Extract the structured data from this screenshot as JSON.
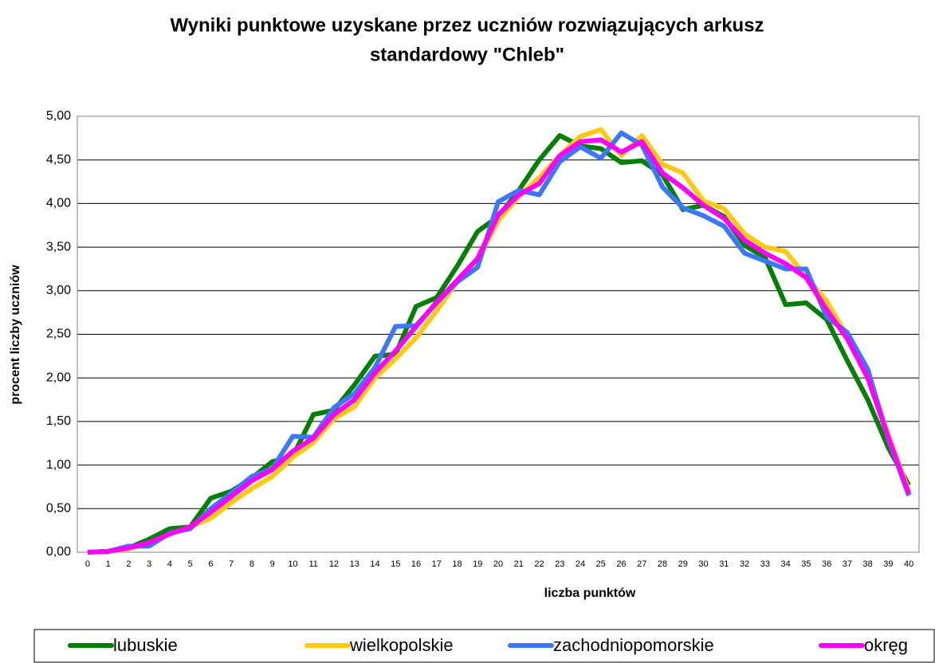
{
  "chart_data": {
    "type": "line",
    "title": [
      "Wyniki punktowe uzyskane przez uczniów rozwiązujących arkusz",
      "standardowy \"Chleb\""
    ],
    "x_label": "liczba punktów",
    "y_label": "procent liczby uczniów",
    "categories": [
      "0",
      "1",
      "2",
      "3",
      "4",
      "5",
      "6",
      "7",
      "8",
      "9",
      "10",
      "11",
      "12",
      "13",
      "14",
      "15",
      "16",
      "17",
      "18",
      "19",
      "20",
      "21",
      "22",
      "23",
      "24",
      "25",
      "26",
      "27",
      "28",
      "29",
      "30",
      "31",
      "32",
      "33",
      "34",
      "35",
      "36",
      "37",
      "38",
      "39",
      "40"
    ],
    "series": [
      {
        "name": "lubuskie",
        "color": "#008000",
        "values": [
          0,
          0.01,
          0.05,
          0.15,
          0.27,
          0.29,
          0.62,
          0.7,
          0.85,
          1.04,
          1.1,
          1.58,
          1.63,
          1.92,
          2.25,
          2.27,
          2.82,
          2.92,
          3.28,
          3.68,
          3.85,
          4.15,
          4.5,
          4.78,
          4.66,
          4.63,
          4.47,
          4.49,
          4.33,
          3.93,
          3.98,
          3.85,
          3.52,
          3.38,
          2.84,
          2.86,
          2.67,
          2.2,
          1.75,
          1.2,
          0.77
        ]
      },
      {
        "name": "wielkopolskie",
        "color": "#ffc90e",
        "values": [
          0,
          0.01,
          0.04,
          0.1,
          0.21,
          0.29,
          0.39,
          0.57,
          0.73,
          0.87,
          1.09,
          1.26,
          1.53,
          1.67,
          2.0,
          2.22,
          2.46,
          2.77,
          3.1,
          3.36,
          3.8,
          4.08,
          4.3,
          4.55,
          4.77,
          4.85,
          4.55,
          4.78,
          4.45,
          4.35,
          4.03,
          3.94,
          3.65,
          3.5,
          3.45,
          3.16,
          2.88,
          2.48,
          2.05,
          1.35,
          0.7
        ]
      },
      {
        "name": "zachodniopomorskie",
        "color": "#3c78ff",
        "values": [
          0,
          0.01,
          0.07,
          0.07,
          0.22,
          0.27,
          0.5,
          0.68,
          0.87,
          0.96,
          1.33,
          1.32,
          1.66,
          1.82,
          2.12,
          2.59,
          2.6,
          2.86,
          3.1,
          3.27,
          4.02,
          4.15,
          4.1,
          4.48,
          4.65,
          4.52,
          4.81,
          4.67,
          4.19,
          3.95,
          3.86,
          3.74,
          3.43,
          3.34,
          3.25,
          3.25,
          2.7,
          2.52,
          2.1,
          1.3,
          0.65
        ]
      },
      {
        "name": "okręg",
        "color": "#ff00ff",
        "values": [
          0,
          0.01,
          0.05,
          0.11,
          0.21,
          0.29,
          0.46,
          0.64,
          0.82,
          0.95,
          1.16,
          1.31,
          1.58,
          1.75,
          2.06,
          2.31,
          2.59,
          2.87,
          3.12,
          3.37,
          3.87,
          4.1,
          4.23,
          4.55,
          4.71,
          4.73,
          4.59,
          4.71,
          4.35,
          4.18,
          3.98,
          3.83,
          3.58,
          3.43,
          3.31,
          3.15,
          2.78,
          2.45,
          2.0,
          1.32,
          0.67
        ]
      }
    ],
    "ylim": [
      0,
      5
    ],
    "yticks": [
      {
        "value": 0,
        "label": "0,00"
      },
      {
        "value": 0.5,
        "label": "0,50"
      },
      {
        "value": 1,
        "label": "1,00"
      },
      {
        "value": 1.5,
        "label": "1,50"
      },
      {
        "value": 2,
        "label": "2,00"
      },
      {
        "value": 2.5,
        "label": "2,50"
      },
      {
        "value": 3,
        "label": "3,00"
      },
      {
        "value": 3.5,
        "label": "3,50"
      },
      {
        "value": 4,
        "label": "4,00"
      },
      {
        "value": 4.5,
        "label": "4,50"
      },
      {
        "value": 5,
        "label": "5,00"
      }
    ],
    "grid": true,
    "legend": "bottom"
  }
}
